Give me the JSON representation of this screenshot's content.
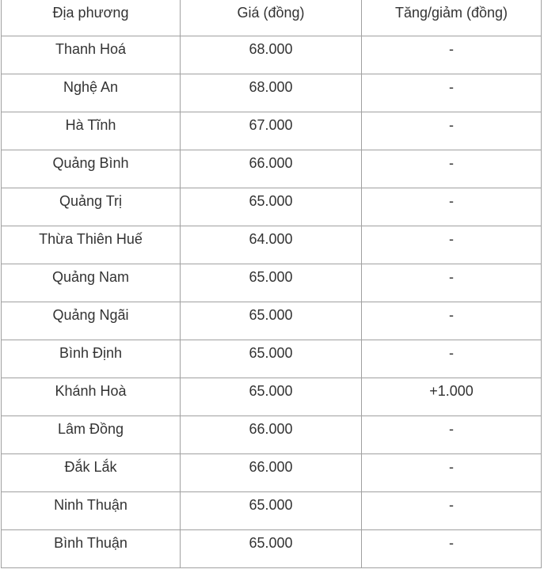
{
  "table": {
    "headers": [
      "Địa phương",
      "Giá (đồng)",
      "Tăng/giảm (đồng)"
    ],
    "rows": [
      [
        "Thanh Hoá",
        "68.000",
        "-"
      ],
      [
        "Nghệ An",
        "68.000",
        "-"
      ],
      [
        "Hà Tĩnh",
        "67.000",
        "-"
      ],
      [
        "Quảng Bình",
        "66.000",
        "-"
      ],
      [
        "Quảng Trị",
        "65.000",
        "-"
      ],
      [
        "Thừa Thiên Huế",
        "64.000",
        "-"
      ],
      [
        "Quảng Nam",
        "65.000",
        "-"
      ],
      [
        "Quảng Ngãi",
        "65.000",
        "-"
      ],
      [
        "Bình Định",
        "65.000",
        "-"
      ],
      [
        "Khánh Hoà",
        "65.000",
        "+1.000"
      ],
      [
        "Lâm Đồng",
        "66.000",
        "-"
      ],
      [
        "Đắk Lắk",
        "66.000",
        "-"
      ],
      [
        "Ninh Thuận",
        "65.000",
        "-"
      ],
      [
        "Bình Thuận",
        "65.000",
        "-"
      ]
    ]
  }
}
